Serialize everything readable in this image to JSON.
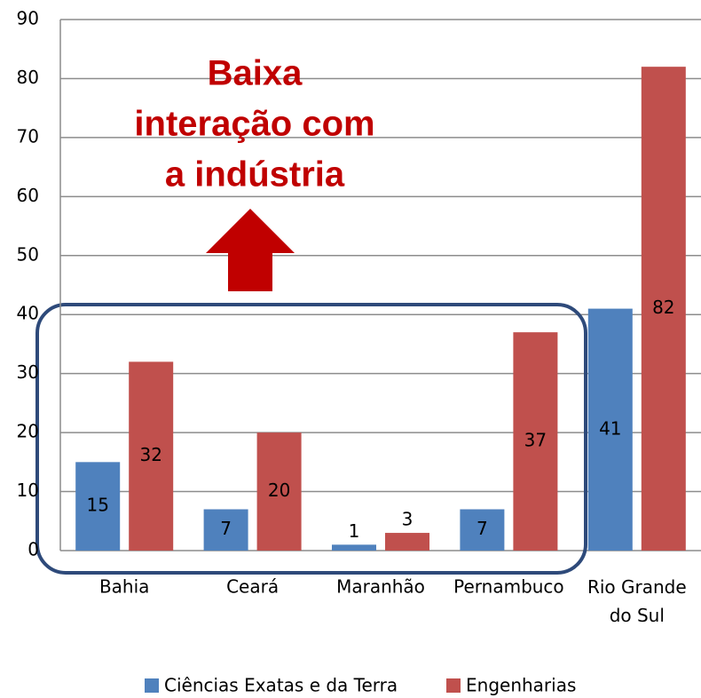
{
  "chart_data": {
    "type": "bar",
    "categories": [
      "Bahia",
      "Ceará",
      "Maranhão",
      "Pernambuco",
      "Rio Grande do Sul"
    ],
    "series": [
      {
        "name": "Ciências Exatas e da Terra",
        "color": "#4f81bd",
        "values": [
          15,
          7,
          1,
          7,
          41
        ]
      },
      {
        "name": "Engenharias",
        "color": "#c0504d",
        "values": [
          32,
          20,
          3,
          37,
          82
        ]
      }
    ],
    "ylim": [
      0,
      90
    ],
    "yticks": [
      0,
      10,
      20,
      30,
      40,
      50,
      60,
      70,
      80,
      90
    ],
    "grid": true,
    "legend": "bottom",
    "annotation": [
      "Baixa",
      "interação com",
      "a indústria"
    ]
  }
}
